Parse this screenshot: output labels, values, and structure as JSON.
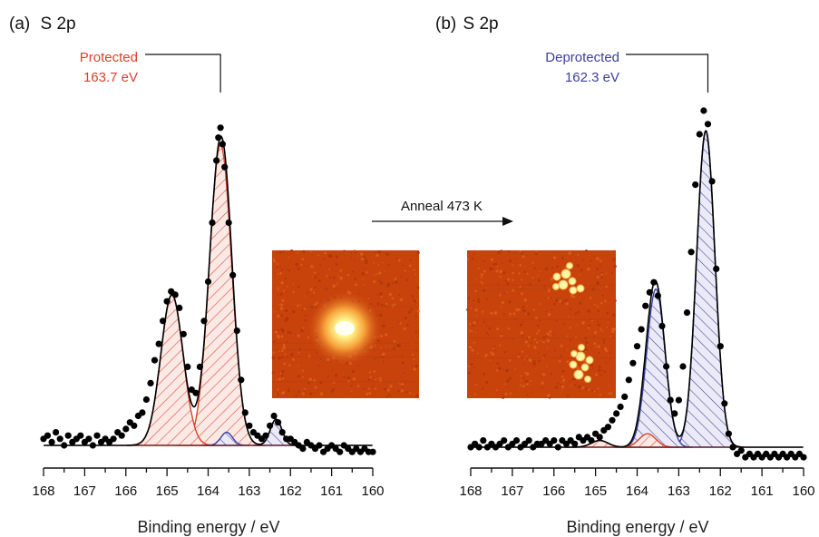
{
  "colors": {
    "protected": "#d9412b",
    "deprotected": "#3b3f9a",
    "data_points": "#000000",
    "fit_line": "#000000",
    "stm_background_a": "#c8430c",
    "stm_background_b": "#c8430c"
  },
  "arrow_label": "Anneal 473 K",
  "chart_data": [
    {
      "type": "scatter",
      "panel_label": "(a)",
      "title": "S 2p",
      "xlabel": "Binding energy / eV",
      "xlim": [
        168,
        160
      ],
      "x_reversed": true,
      "xticks": [
        "168",
        "167",
        "166",
        "165",
        "164",
        "163",
        "162",
        "161",
        "160"
      ],
      "annotation": {
        "text_line1": "Protected",
        "text_line2": "163.7 eV",
        "x": 163.7
      },
      "peaks": [
        {
          "component": "protected 2p3/2",
          "center": 163.7,
          "height": 0.92,
          "sigma": 0.27,
          "fill": "hatched"
        },
        {
          "component": "protected 2p1/2",
          "center": 164.88,
          "height": 0.46,
          "sigma": 0.27,
          "fill": "hatched"
        },
        {
          "component": "deprotected 2p3/2",
          "center": 162.35,
          "height": 0.08,
          "sigma": 0.14,
          "fill": "hatched"
        },
        {
          "component": "deprotected 2p1/2",
          "center": 163.55,
          "height": 0.04,
          "sigma": 0.14,
          "fill": "hatched"
        }
      ],
      "data_points": [
        [
          168.0,
          0.02
        ],
        [
          167.9,
          0.03
        ],
        [
          167.8,
          0.01
        ],
        [
          167.7,
          0.04
        ],
        [
          167.6,
          0.02
        ],
        [
          167.5,
          0.0
        ],
        [
          167.4,
          0.03
        ],
        [
          167.3,
          0.01
        ],
        [
          167.2,
          0.02
        ],
        [
          167.1,
          0.03
        ],
        [
          167.0,
          0.01
        ],
        [
          166.9,
          0.02
        ],
        [
          166.8,
          0.0
        ],
        [
          166.7,
          0.03
        ],
        [
          166.6,
          0.01
        ],
        [
          166.5,
          0.02
        ],
        [
          166.4,
          0.01
        ],
        [
          166.3,
          0.02
        ],
        [
          166.2,
          0.04
        ],
        [
          166.1,
          0.03
        ],
        [
          166.0,
          0.05
        ],
        [
          165.9,
          0.07
        ],
        [
          165.8,
          0.06
        ],
        [
          165.7,
          0.09
        ],
        [
          165.6,
          0.1
        ],
        [
          165.5,
          0.14
        ],
        [
          165.4,
          0.19
        ],
        [
          165.3,
          0.26
        ],
        [
          165.2,
          0.31
        ],
        [
          165.1,
          0.38
        ],
        [
          165.0,
          0.44
        ],
        [
          164.9,
          0.47
        ],
        [
          164.8,
          0.46
        ],
        [
          164.7,
          0.42
        ],
        [
          164.6,
          0.34
        ],
        [
          164.5,
          0.24
        ],
        [
          164.4,
          0.17
        ],
        [
          164.3,
          0.16
        ],
        [
          164.2,
          0.24
        ],
        [
          164.1,
          0.38
        ],
        [
          164.0,
          0.5
        ],
        [
          163.9,
          0.68
        ],
        [
          163.8,
          0.87
        ],
        [
          163.75,
          0.94
        ],
        [
          163.7,
          0.97
        ],
        [
          163.65,
          0.92
        ],
        [
          163.6,
          0.85
        ],
        [
          163.5,
          0.68
        ],
        [
          163.4,
          0.52
        ],
        [
          163.3,
          0.35
        ],
        [
          163.2,
          0.2
        ],
        [
          163.1,
          0.1
        ],
        [
          163.0,
          0.06
        ],
        [
          162.9,
          0.04
        ],
        [
          162.8,
          0.03
        ],
        [
          162.7,
          0.02
        ],
        [
          162.6,
          0.03
        ],
        [
          162.5,
          0.06
        ],
        [
          162.4,
          0.09
        ],
        [
          162.3,
          0.07
        ],
        [
          162.2,
          0.04
        ],
        [
          162.1,
          0.02
        ],
        [
          162.0,
          0.02
        ],
        [
          161.9,
          0.01
        ],
        [
          161.8,
          0.0
        ],
        [
          161.7,
          -0.01
        ],
        [
          161.6,
          0.01
        ],
        [
          161.5,
          0.0
        ],
        [
          161.4,
          -0.01
        ],
        [
          161.3,
          0.0
        ],
        [
          161.2,
          -0.02
        ],
        [
          161.1,
          -0.01
        ],
        [
          161.0,
          0.0
        ],
        [
          160.9,
          -0.01
        ],
        [
          160.8,
          -0.02
        ],
        [
          160.7,
          0.0
        ],
        [
          160.6,
          -0.01
        ],
        [
          160.5,
          -0.02
        ],
        [
          160.4,
          -0.01
        ],
        [
          160.3,
          -0.02
        ],
        [
          160.2,
          -0.01
        ],
        [
          160.1,
          -0.02
        ],
        [
          160.0,
          -0.02
        ]
      ]
    },
    {
      "type": "scatter",
      "panel_label": "(b)",
      "title": "S 2p",
      "xlabel": "Binding energy / eV",
      "xlim": [
        168,
        160
      ],
      "x_reversed": true,
      "xticks": [
        "168",
        "167",
        "166",
        "165",
        "164",
        "163",
        "162",
        "161",
        "160"
      ],
      "annotation": {
        "text_line1": "Deprotected",
        "text_line2": "162.3 eV",
        "x": 162.3
      },
      "peaks": [
        {
          "component": "deprotected 2p3/2",
          "center": 162.35,
          "height": 0.94,
          "sigma": 0.22,
          "fill": "hatched"
        },
        {
          "component": "deprotected 2p1/2",
          "center": 163.55,
          "height": 0.47,
          "sigma": 0.22,
          "fill": "hatched"
        },
        {
          "component": "protected 2p3/2",
          "center": 163.75,
          "height": 0.04,
          "sigma": 0.2,
          "fill": "hatched"
        },
        {
          "component": "protected 2p1/2",
          "center": 164.9,
          "height": 0.02,
          "sigma": 0.2,
          "fill": "hatched"
        }
      ],
      "data_points": [
        [
          168.0,
          0.0
        ],
        [
          167.9,
          0.01
        ],
        [
          167.8,
          0.0
        ],
        [
          167.7,
          0.02
        ],
        [
          167.6,
          0.0
        ],
        [
          167.5,
          0.01
        ],
        [
          167.4,
          0.0
        ],
        [
          167.3,
          0.01
        ],
        [
          167.2,
          0.02
        ],
        [
          167.1,
          0.0
        ],
        [
          167.0,
          0.01
        ],
        [
          166.9,
          0.02
        ],
        [
          166.8,
          0.0
        ],
        [
          166.7,
          0.01
        ],
        [
          166.6,
          0.02
        ],
        [
          166.5,
          0.0
        ],
        [
          166.4,
          0.01
        ],
        [
          166.3,
          0.01
        ],
        [
          166.2,
          0.02
        ],
        [
          166.1,
          0.01
        ],
        [
          166.0,
          0.02
        ],
        [
          165.9,
          0.0
        ],
        [
          165.8,
          0.02
        ],
        [
          165.7,
          0.01
        ],
        [
          165.6,
          0.02
        ],
        [
          165.5,
          0.01
        ],
        [
          165.4,
          0.03
        ],
        [
          165.3,
          0.02
        ],
        [
          165.2,
          0.03
        ],
        [
          165.1,
          0.02
        ],
        [
          165.0,
          0.04
        ],
        [
          164.9,
          0.03
        ],
        [
          164.8,
          0.05
        ],
        [
          164.7,
          0.06
        ],
        [
          164.6,
          0.08
        ],
        [
          164.5,
          0.1
        ],
        [
          164.4,
          0.12
        ],
        [
          164.3,
          0.15
        ],
        [
          164.2,
          0.2
        ],
        [
          164.1,
          0.25
        ],
        [
          164.0,
          0.3
        ],
        [
          163.9,
          0.35
        ],
        [
          163.8,
          0.42
        ],
        [
          163.7,
          0.46
        ],
        [
          163.6,
          0.49
        ],
        [
          163.5,
          0.45
        ],
        [
          163.4,
          0.36
        ],
        [
          163.3,
          0.24
        ],
        [
          163.2,
          0.14
        ],
        [
          163.1,
          0.1
        ],
        [
          163.0,
          0.14
        ],
        [
          162.9,
          0.24
        ],
        [
          162.8,
          0.4
        ],
        [
          162.7,
          0.58
        ],
        [
          162.6,
          0.78
        ],
        [
          162.5,
          0.93
        ],
        [
          162.4,
          1.0
        ],
        [
          162.3,
          0.96
        ],
        [
          162.2,
          0.79
        ],
        [
          162.1,
          0.53
        ],
        [
          162.0,
          0.3
        ],
        [
          161.9,
          0.13
        ],
        [
          161.8,
          0.04
        ],
        [
          161.7,
          0.0
        ],
        [
          161.6,
          -0.02
        ],
        [
          161.5,
          -0.01
        ],
        [
          161.4,
          -0.03
        ],
        [
          161.3,
          -0.02
        ],
        [
          161.2,
          -0.03
        ],
        [
          161.1,
          -0.02
        ],
        [
          161.0,
          -0.03
        ],
        [
          160.9,
          -0.02
        ],
        [
          160.8,
          -0.03
        ],
        [
          160.7,
          -0.02
        ],
        [
          160.6,
          -0.03
        ],
        [
          160.5,
          -0.02
        ],
        [
          160.4,
          -0.03
        ],
        [
          160.3,
          -0.02
        ],
        [
          160.2,
          -0.03
        ],
        [
          160.1,
          -0.02
        ],
        [
          160.0,
          -0.03
        ]
      ]
    }
  ]
}
